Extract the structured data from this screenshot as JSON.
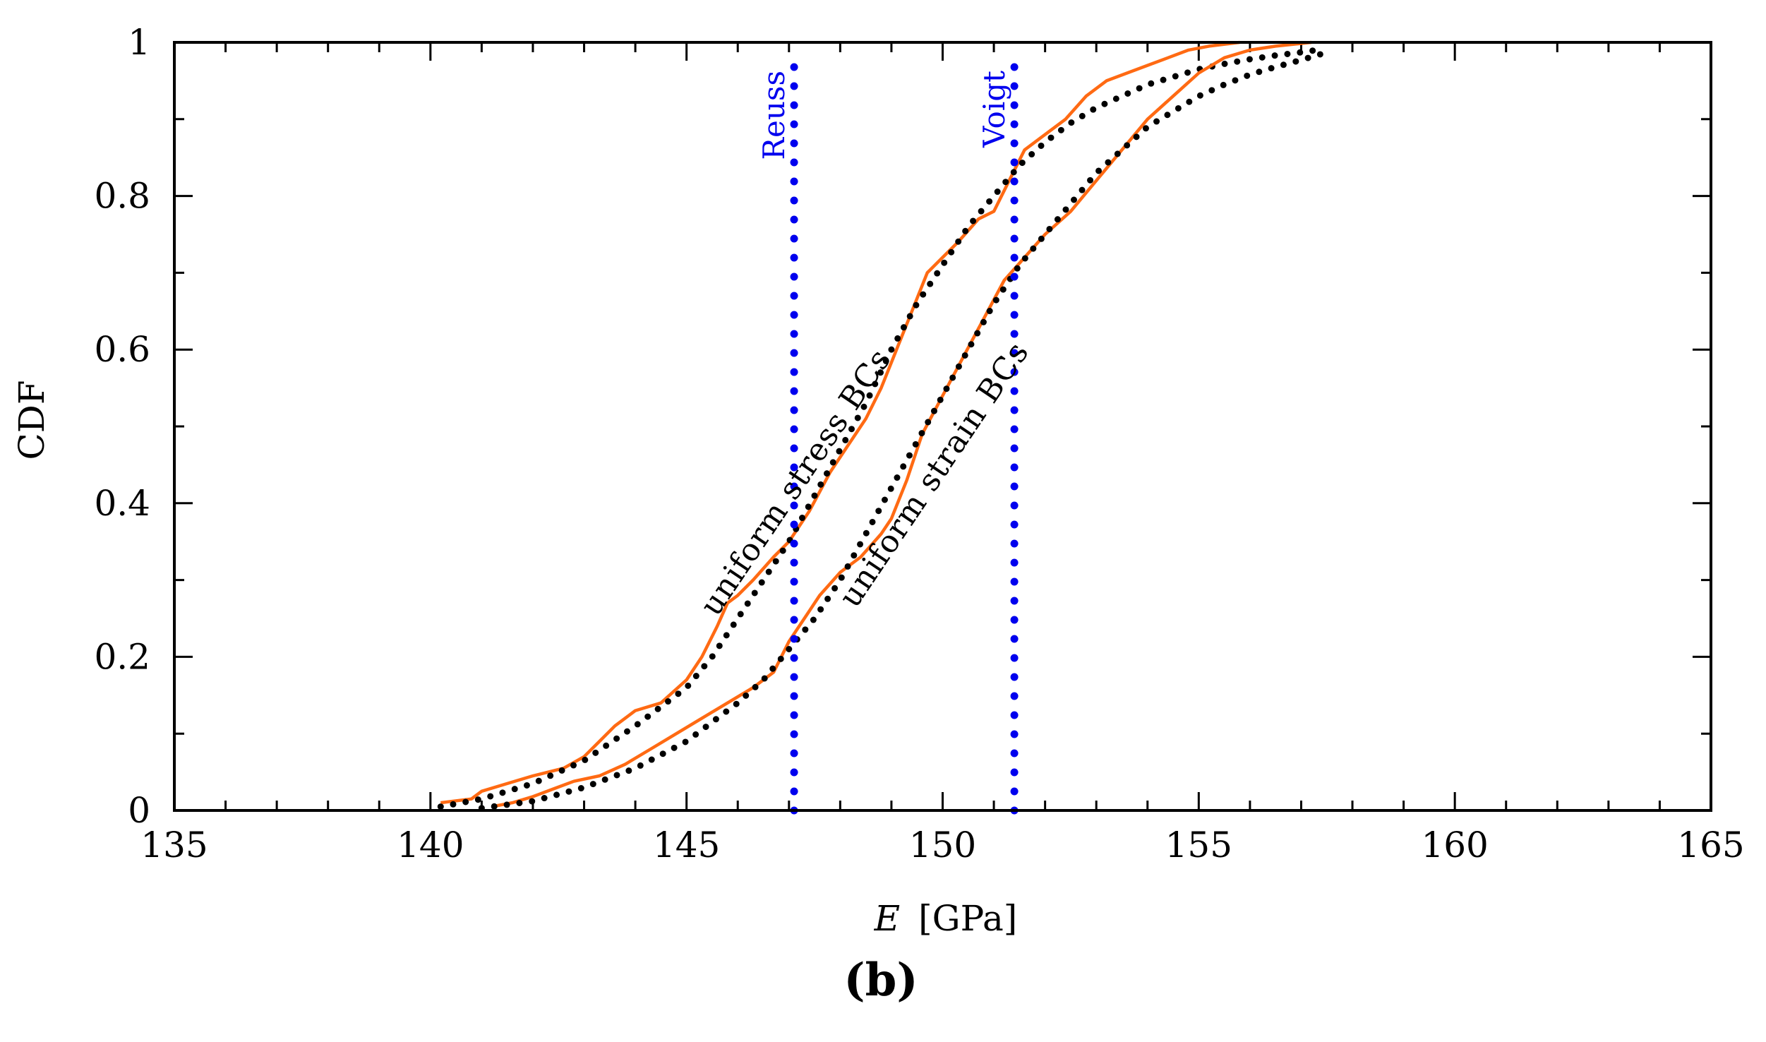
{
  "chart_data": {
    "type": "line",
    "panel_label": "(b)",
    "xlabel_var": "E",
    "xlabel_unit": "[GPa]",
    "ylabel": "CDF",
    "xlim": [
      135,
      165
    ],
    "ylim": [
      0,
      1
    ],
    "x_ticks": [
      135,
      140,
      145,
      150,
      155,
      160,
      165
    ],
    "x_tick_labels": [
      "135",
      "140",
      "145",
      "150",
      "155",
      "160",
      "165"
    ],
    "y_ticks": [
      0,
      0.2,
      0.4,
      0.6,
      0.8,
      1
    ],
    "y_tick_labels": [
      "0",
      "0.2",
      "0.4",
      "0.6",
      "0.8",
      "1"
    ],
    "colors": {
      "empirical": "#ff6a13",
      "fitted": "#000000",
      "bounds": "#0000ee"
    },
    "series": [
      {
        "name": "uniform stress BCs (empirical)",
        "style": "solid",
        "color": "#ff6a13",
        "x": [
          140.2,
          140.8,
          141.0,
          141.5,
          142.0,
          142.6,
          143.0,
          143.3,
          143.6,
          144.0,
          144.5,
          145.0,
          145.3,
          145.6,
          145.8,
          146.0,
          146.3,
          146.7,
          147.0,
          147.4,
          147.8,
          148.1,
          148.5,
          148.8,
          149.1,
          149.4,
          149.7,
          150.0,
          150.3,
          150.7,
          151.0,
          151.3,
          151.6,
          152.0,
          152.4,
          152.8,
          153.2,
          153.6,
          154.0,
          154.4,
          154.8,
          155.2,
          155.8
        ],
        "y": [
          0.01,
          0.015,
          0.025,
          0.035,
          0.045,
          0.055,
          0.07,
          0.09,
          0.11,
          0.13,
          0.14,
          0.17,
          0.2,
          0.24,
          0.27,
          0.28,
          0.3,
          0.33,
          0.35,
          0.39,
          0.44,
          0.47,
          0.51,
          0.55,
          0.6,
          0.65,
          0.7,
          0.72,
          0.74,
          0.77,
          0.78,
          0.82,
          0.86,
          0.88,
          0.9,
          0.93,
          0.95,
          0.96,
          0.97,
          0.98,
          0.99,
          0.995,
          1.0
        ]
      },
      {
        "name": "uniform stress BCs (fitted)",
        "style": "dotted",
        "color": "#000000",
        "x": [
          140.2,
          141.0,
          142.0,
          143.0,
          144.0,
          145.0,
          145.5,
          146.0,
          146.5,
          147.0,
          147.5,
          148.0,
          148.5,
          149.0,
          149.5,
          150.0,
          150.5,
          151.0,
          151.5,
          152.0,
          152.5,
          153.0,
          153.5,
          154.0,
          154.5,
          155.0,
          155.5,
          156.0,
          156.5,
          157.0,
          157.3
        ],
        "y": [
          0.005,
          0.015,
          0.035,
          0.065,
          0.11,
          0.16,
          0.2,
          0.25,
          0.3,
          0.35,
          0.41,
          0.47,
          0.53,
          0.6,
          0.66,
          0.71,
          0.76,
          0.8,
          0.84,
          0.87,
          0.895,
          0.915,
          0.93,
          0.945,
          0.955,
          0.965,
          0.972,
          0.978,
          0.983,
          0.987,
          0.99
        ]
      },
      {
        "name": "uniform strain BCs (empirical)",
        "style": "solid",
        "color": "#ff6a13",
        "x": [
          141.2,
          141.6,
          142.0,
          142.4,
          142.8,
          143.3,
          143.8,
          144.3,
          144.8,
          145.3,
          145.8,
          146.3,
          146.7,
          147.0,
          147.3,
          147.6,
          148.0,
          148.4,
          148.8,
          149.0,
          149.3,
          149.6,
          150.0,
          150.4,
          150.8,
          151.2,
          151.6,
          152.0,
          152.5,
          153.0,
          153.5,
          154.0,
          154.5,
          155.0,
          155.5,
          156.0,
          156.5,
          157.2
        ],
        "y": [
          0.005,
          0.01,
          0.018,
          0.028,
          0.038,
          0.045,
          0.06,
          0.08,
          0.1,
          0.12,
          0.14,
          0.16,
          0.18,
          0.22,
          0.25,
          0.28,
          0.31,
          0.33,
          0.36,
          0.38,
          0.43,
          0.49,
          0.54,
          0.59,
          0.64,
          0.69,
          0.72,
          0.75,
          0.78,
          0.82,
          0.86,
          0.9,
          0.93,
          0.96,
          0.98,
          0.99,
          0.995,
          1.0
        ]
      },
      {
        "name": "uniform strain BCs (fitted)",
        "style": "dotted",
        "color": "#000000",
        "x": [
          141.0,
          142.0,
          143.0,
          144.0,
          145.0,
          146.0,
          146.5,
          147.0,
          147.5,
          148.0,
          148.5,
          149.0,
          149.5,
          150.0,
          150.5,
          151.0,
          151.5,
          152.0,
          152.5,
          153.0,
          153.5,
          154.0,
          154.5,
          155.0,
          155.5,
          156.0,
          156.5,
          157.0,
          157.4
        ],
        "y": [
          0.003,
          0.012,
          0.03,
          0.055,
          0.09,
          0.14,
          0.17,
          0.21,
          0.25,
          0.3,
          0.36,
          0.42,
          0.48,
          0.54,
          0.6,
          0.66,
          0.71,
          0.75,
          0.79,
          0.83,
          0.86,
          0.89,
          0.91,
          0.93,
          0.945,
          0.958,
          0.968,
          0.977,
          0.985
        ]
      }
    ],
    "reference_lines": [
      {
        "label": "Reuss",
        "x": 147.1,
        "style": "dotted",
        "color": "#0000ee"
      },
      {
        "label": "Voigt",
        "x": 151.4,
        "style": "dotted",
        "color": "#0000ee"
      }
    ],
    "annotations": [
      {
        "text": "uniform stress BCs",
        "x": 147.3,
        "y": 0.42
      },
      {
        "text": "uniform strain BCs",
        "x": 150.0,
        "y": 0.43
      }
    ]
  }
}
